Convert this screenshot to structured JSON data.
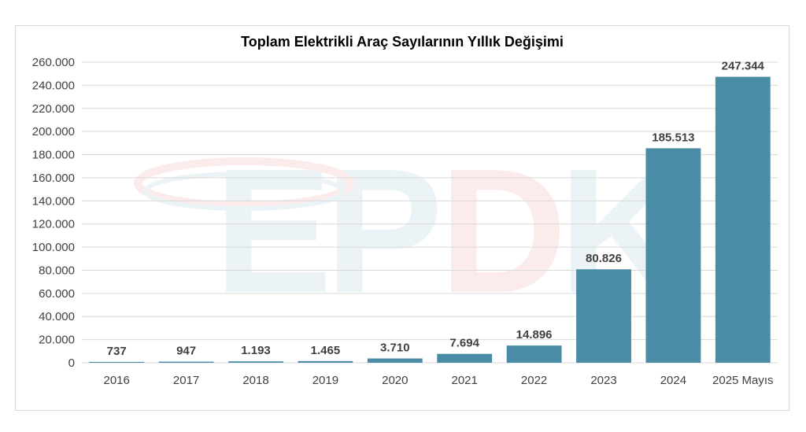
{
  "chart_data": {
    "type": "bar",
    "title": "Toplam Elektrikli Araç Sayılarının Yıllık Değişimi",
    "categories": [
      "2016",
      "2017",
      "2018",
      "2019",
      "2020",
      "2021",
      "2022",
      "2023",
      "2024",
      "2025 Mayıs"
    ],
    "values": [
      737,
      947,
      1193,
      1465,
      3710,
      7694,
      14896,
      80826,
      185513,
      247344
    ],
    "value_labels": [
      "737",
      "947",
      "1.193",
      "1.465",
      "3.710",
      "7.694",
      "14.896",
      "80.826",
      "185.513",
      "247.344"
    ],
    "ylim": [
      0,
      260000
    ],
    "yticks": [
      0,
      20000,
      40000,
      60000,
      80000,
      100000,
      120000,
      140000,
      160000,
      180000,
      200000,
      220000,
      240000,
      260000
    ],
    "ytick_labels": [
      "0",
      "20.000",
      "40.000",
      "60.000",
      "80.000",
      "100.000",
      "120.000",
      "140.000",
      "160.000",
      "180.000",
      "200.000",
      "220.000",
      "240.000",
      "260.000"
    ],
    "xlabel": "",
    "ylabel": "",
    "grid": true,
    "legend": "none",
    "bar_color": "#4a8ba5",
    "watermark": "EPDK"
  }
}
